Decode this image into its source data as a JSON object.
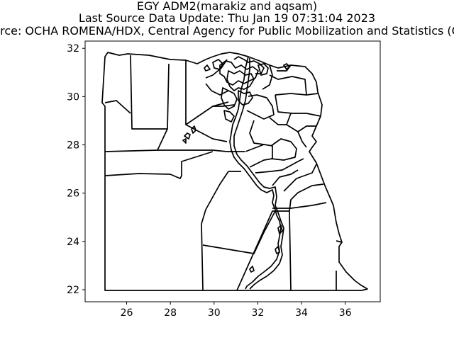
{
  "figure": {
    "title_line1": "EGY ADM2(marakiz and aqsam)",
    "title_line2": "Last Source Data Update: Thu Jan 19 07:31:04 2023",
    "title_line3": "Source: OCHA ROMENA/HDX, Central Agency for Public Mobilization and Statistics (CAPMAS)"
  },
  "map_data": {
    "type": "choropleth-outline",
    "country": "EGY",
    "admin_level": "ADM2",
    "xlim": [
      24.1,
      37.6
    ],
    "ylim": [
      21.5,
      32.3
    ],
    "x_ticks": [
      26,
      28,
      30,
      32,
      34,
      36
    ],
    "y_ticks": [
      22,
      24,
      26,
      28,
      30,
      32
    ],
    "fill": "none",
    "stroke_color": "#000000",
    "frame_color": "#000000"
  }
}
